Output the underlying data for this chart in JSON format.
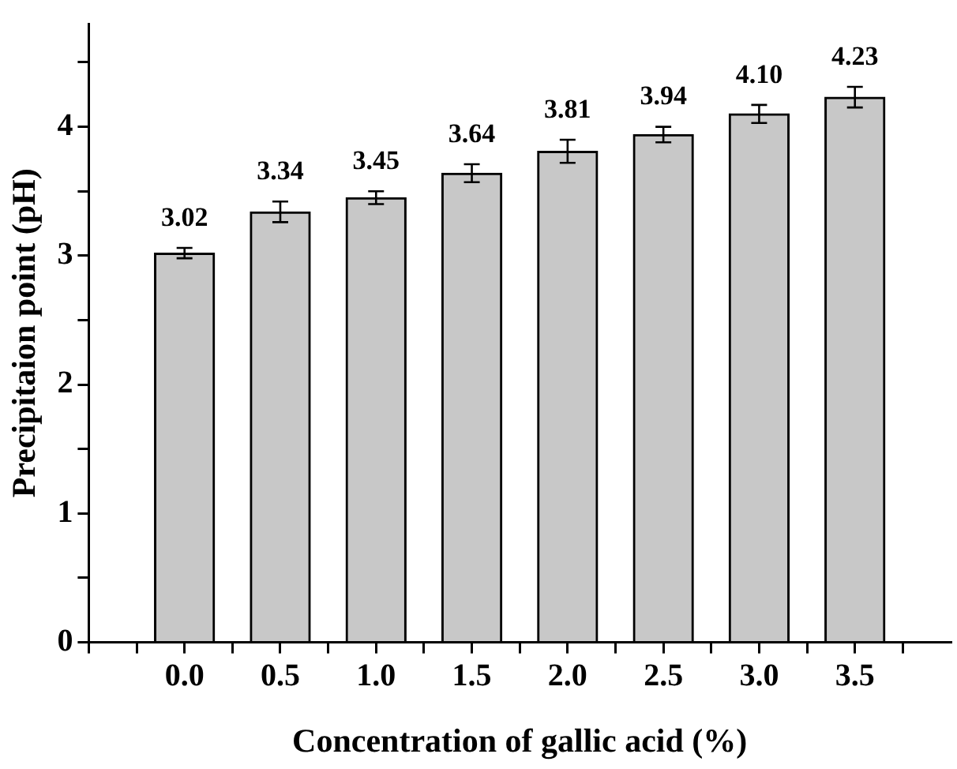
{
  "chart_data": {
    "type": "bar",
    "xlabel": "Concentration of gallic acid (%)",
    "ylabel": "Precipitaion point (pH)",
    "x": [
      0,
      0.5,
      1,
      1.5,
      2,
      2.5,
      3,
      3.5
    ],
    "values": [
      3.02,
      3.34,
      3.45,
      3.64,
      3.81,
      3.94,
      4.1,
      4.23
    ],
    "errors": [
      0.04,
      0.08,
      0.05,
      0.07,
      0.09,
      0.06,
      0.07,
      0.08
    ],
    "value_labels": [
      "3.02",
      "3.34",
      "3.45",
      "3.64",
      "3.81",
      "3.94",
      "4.10",
      "4.23"
    ],
    "color": "#c8c8c8",
    "xlim": [
      -0.5,
      4.0
    ],
    "xticks": [
      {
        "value": -0.5,
        "label": null
      },
      {
        "value": -0.25,
        "label": null
      },
      {
        "value": 0,
        "label": "0.0"
      },
      {
        "value": 0.25,
        "label": null
      },
      {
        "value": 0.5,
        "label": "0.5"
      },
      {
        "value": 0.75,
        "label": null
      },
      {
        "value": 1,
        "label": "1.0"
      },
      {
        "value": 1.25,
        "label": null
      },
      {
        "value": 1.5,
        "label": "1.5"
      },
      {
        "value": 1.75,
        "label": null
      },
      {
        "value": 2,
        "label": "2.0"
      },
      {
        "value": 2.25,
        "label": null
      },
      {
        "value": 2.5,
        "label": "2.5"
      },
      {
        "value": 2.75,
        "label": null
      },
      {
        "value": 3,
        "label": "3.0"
      },
      {
        "value": 3.25,
        "label": null
      },
      {
        "value": 3.5,
        "label": "3.5"
      },
      {
        "value": 3.75,
        "label": null
      }
    ],
    "ylim": [
      0,
      4.8
    ],
    "yticks": [
      0,
      {
        "value": 0.5,
        "label": null
      },
      1,
      {
        "value": 1.5,
        "label": null
      },
      2,
      {
        "value": 2.5,
        "label": null
      },
      3,
      {
        "value": 3.5,
        "label": null
      },
      4,
      {
        "value": 4.5,
        "label": null
      }
    ],
    "grid": false,
    "legend": false
  }
}
